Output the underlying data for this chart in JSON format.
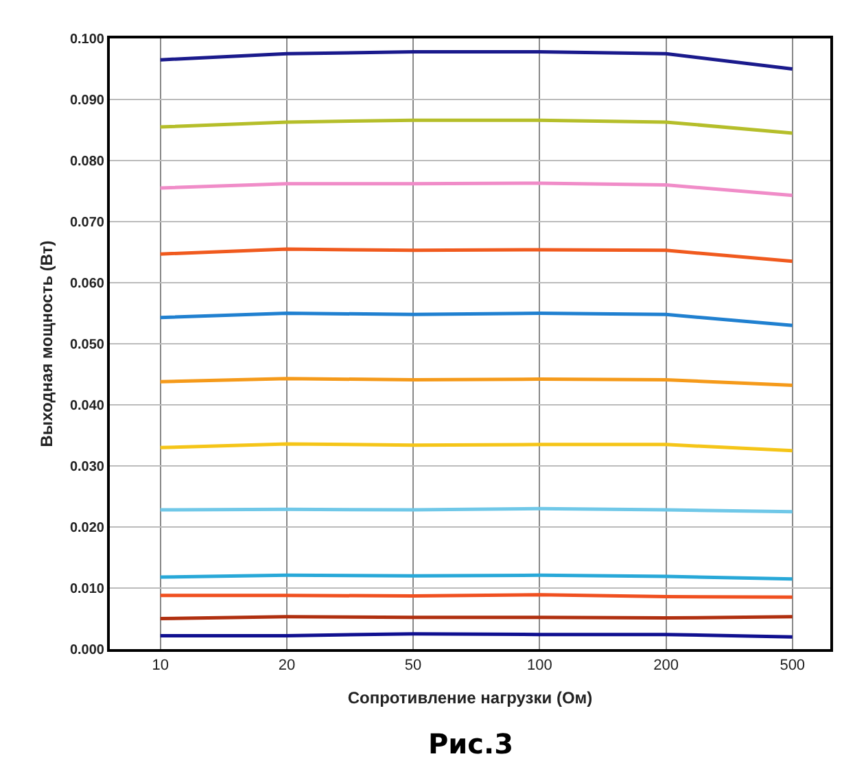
{
  "chart_data": {
    "type": "line",
    "xlabel": "Сопротивление нагрузки (Ом)",
    "ylabel": "Выходная мощность (Вт)",
    "annotations": [
      "Рис.3"
    ],
    "categories": [
      "10",
      "20",
      "50",
      "100",
      "200",
      "500"
    ],
    "ylim": [
      0,
      0.1
    ],
    "yticks": [
      {
        "value": 0,
        "label": "0.000"
      },
      {
        "value": 0.01,
        "label": "0.010"
      },
      {
        "value": 0.02,
        "label": "0.020"
      },
      {
        "value": 0.03,
        "label": "0.030"
      },
      {
        "value": 0.04,
        "label": "0.040"
      },
      {
        "value": 0.05,
        "label": "0.050"
      },
      {
        "value": 0.06,
        "label": "0.060"
      },
      {
        "value": 0.07,
        "label": "0.070"
      },
      {
        "value": 0.08,
        "label": "0.080"
      },
      {
        "value": 0.09,
        "label": "0.090"
      },
      {
        "value": 0.1,
        "label": "0.100"
      }
    ],
    "grid": true,
    "marker": "none",
    "line_style": "solid",
    "series": [
      {
        "color": "#1a1a8c",
        "values": [
          0.0965,
          0.0975,
          0.0978,
          0.0978,
          0.0975,
          0.095
        ]
      },
      {
        "color": "#b5be2a",
        "values": [
          0.0855,
          0.0863,
          0.0866,
          0.0866,
          0.0863,
          0.0845
        ]
      },
      {
        "color": "#f08cc8",
        "values": [
          0.0755,
          0.0762,
          0.0762,
          0.0763,
          0.076,
          0.0743
        ]
      },
      {
        "color": "#f05a1e",
        "values": [
          0.0647,
          0.0655,
          0.0653,
          0.0654,
          0.0653,
          0.0635
        ]
      },
      {
        "color": "#2080d0",
        "values": [
          0.0543,
          0.055,
          0.0548,
          0.055,
          0.0548,
          0.053
        ]
      },
      {
        "color": "#f59a1a",
        "values": [
          0.0438,
          0.0443,
          0.0441,
          0.0442,
          0.0441,
          0.0432
        ]
      },
      {
        "color": "#f5c518",
        "values": [
          0.033,
          0.0336,
          0.0334,
          0.0335,
          0.0335,
          0.0325
        ]
      },
      {
        "color": "#70c8e8",
        "values": [
          0.0228,
          0.0229,
          0.0228,
          0.023,
          0.0228,
          0.0225
        ]
      },
      {
        "color": "#28a8d8",
        "values": [
          0.0118,
          0.0121,
          0.012,
          0.0121,
          0.0119,
          0.0115
        ]
      },
      {
        "color": "#f05020",
        "values": [
          0.0088,
          0.0088,
          0.0087,
          0.0089,
          0.0086,
          0.0085
        ]
      },
      {
        "color": "#b03010",
        "values": [
          0.005,
          0.0053,
          0.0052,
          0.0052,
          0.0051,
          0.0053
        ]
      },
      {
        "color": "#101090",
        "values": [
          0.0022,
          0.0022,
          0.0025,
          0.0024,
          0.0024,
          0.002
        ]
      }
    ]
  }
}
